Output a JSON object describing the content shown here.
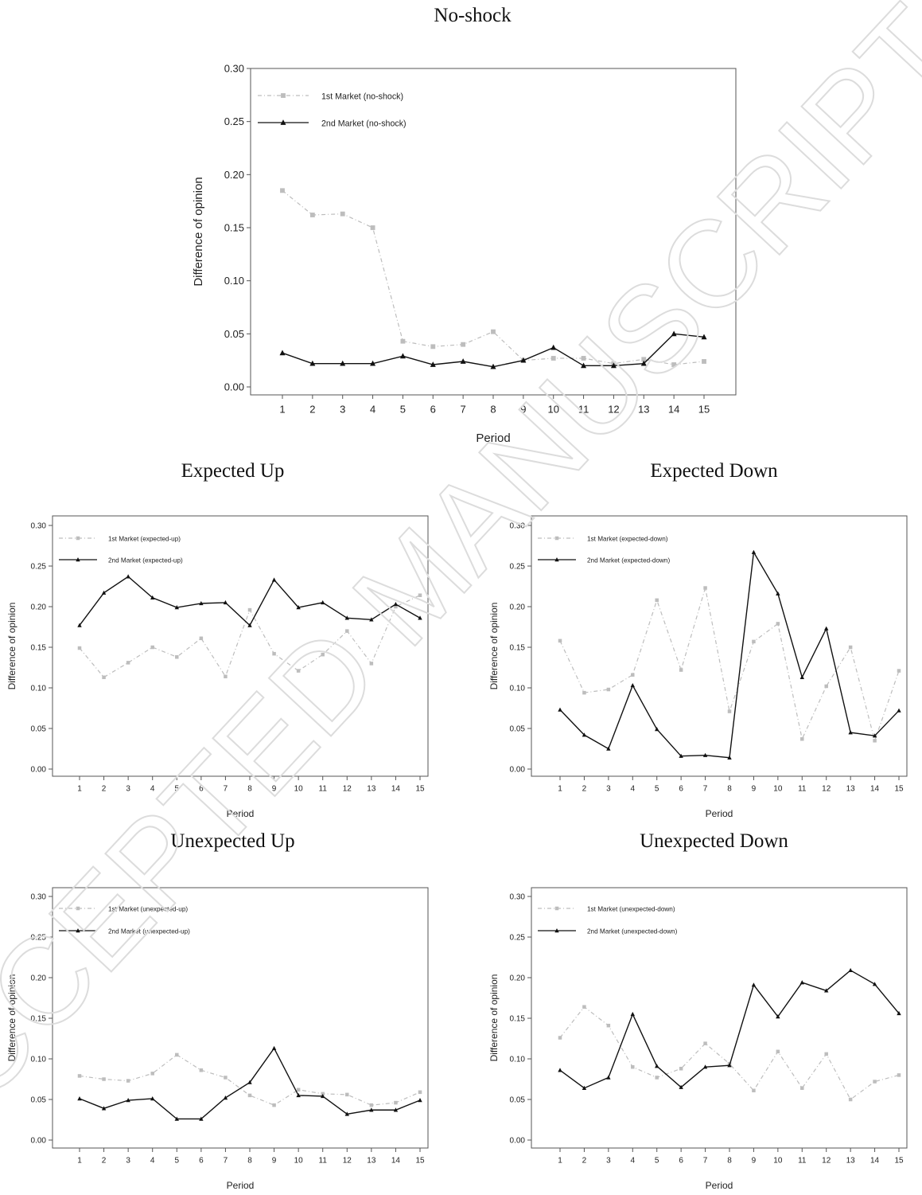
{
  "page": {
    "watermark": "ACCEPTED MANUSCRIPT"
  },
  "colors": {
    "first_market": "#bdbdbd",
    "second_market": "#111111",
    "axis": "#555555"
  },
  "chart_data": [
    {
      "type": "line",
      "title": "No-shock",
      "xlabel": "Period",
      "ylabel": "Difference of opinion",
      "x": [
        1,
        2,
        3,
        4,
        5,
        6,
        7,
        8,
        9,
        10,
        11,
        12,
        13,
        14,
        15
      ],
      "ylim": [
        0,
        0.3
      ],
      "yticks": [
        "0.00",
        "0.05",
        "0.10",
        "0.15",
        "0.20",
        "0.25",
        "0.30"
      ],
      "grid": false,
      "legend_position": "top-left",
      "series": [
        {
          "name": "1st Market (no-shock)",
          "marker": "square",
          "style": "dash-dot",
          "values": [
            0.185,
            0.162,
            0.163,
            0.15,
            0.043,
            0.038,
            0.04,
            0.052,
            0.025,
            0.027,
            0.027,
            0.022,
            0.026,
            0.021,
            0.024
          ]
        },
        {
          "name": "2nd Market (no-shock)",
          "marker": "triangle",
          "style": "solid",
          "values": [
            0.032,
            0.022,
            0.022,
            0.022,
            0.029,
            0.021,
            0.024,
            0.019,
            0.025,
            0.037,
            0.02,
            0.02,
            0.022,
            0.05,
            0.047
          ]
        }
      ]
    },
    {
      "type": "line",
      "title": "Expected Up",
      "xlabel": "Period",
      "ylabel": "Difference of opinion",
      "x": [
        1,
        2,
        3,
        4,
        5,
        6,
        7,
        8,
        9,
        10,
        11,
        12,
        13,
        14,
        15
      ],
      "ylim": [
        0,
        0.3
      ],
      "yticks": [
        "0.00",
        "0.05",
        "0.10",
        "0.15",
        "0.20",
        "0.25",
        "0.30"
      ],
      "grid": false,
      "legend_position": "top-left",
      "series": [
        {
          "name": "1st Market (expected-up)",
          "marker": "square",
          "style": "dash-dot",
          "values": [
            0.149,
            0.113,
            0.131,
            0.15,
            0.138,
            0.161,
            0.114,
            0.196,
            0.142,
            0.121,
            0.141,
            0.17,
            0.13,
            0.2,
            0.214
          ]
        },
        {
          "name": "2nd Market (expected-up)",
          "marker": "triangle",
          "style": "solid",
          "values": [
            0.177,
            0.217,
            0.237,
            0.211,
            0.199,
            0.204,
            0.205,
            0.177,
            0.233,
            0.199,
            0.205,
            0.186,
            0.184,
            0.203,
            0.186
          ]
        }
      ]
    },
    {
      "type": "line",
      "title": "Expected Down",
      "xlabel": "Period",
      "ylabel": "Difference of opinion",
      "x": [
        1,
        2,
        3,
        4,
        5,
        6,
        7,
        8,
        9,
        10,
        11,
        12,
        13,
        14,
        15
      ],
      "ylim": [
        0,
        0.3
      ],
      "yticks": [
        "0.00",
        "0.05",
        "0.10",
        "0.15",
        "0.20",
        "0.25",
        "0.30"
      ],
      "grid": false,
      "legend_position": "top-left",
      "series": [
        {
          "name": "1st Market (expected-down)",
          "marker": "square",
          "style": "dash-dot",
          "values": [
            0.158,
            0.094,
            0.098,
            0.116,
            0.208,
            0.122,
            0.223,
            0.071,
            0.157,
            0.179,
            0.037,
            0.102,
            0.15,
            0.035,
            0.121
          ]
        },
        {
          "name": "2nd Market (expected-down)",
          "marker": "triangle",
          "style": "solid",
          "values": [
            0.073,
            0.042,
            0.025,
            0.103,
            0.049,
            0.016,
            0.017,
            0.014,
            0.267,
            0.216,
            0.113,
            0.173,
            0.045,
            0.041,
            0.072
          ]
        }
      ]
    },
    {
      "type": "line",
      "title": "Unexpected Up",
      "xlabel": "Period",
      "ylabel": "Difference of opinion",
      "x": [
        1,
        2,
        3,
        4,
        5,
        6,
        7,
        8,
        9,
        10,
        11,
        12,
        13,
        14,
        15
      ],
      "ylim": [
        0,
        0.3
      ],
      "yticks": [
        "0.00",
        "0.05",
        "0.10",
        "0.15",
        "0.20",
        "0.25",
        "0.30"
      ],
      "grid": false,
      "legend_position": "top-left",
      "series": [
        {
          "name": "1st Market (unexpected-up)",
          "marker": "square",
          "style": "dash-dot",
          "values": [
            0.079,
            0.075,
            0.073,
            0.082,
            0.105,
            0.086,
            0.077,
            0.055,
            0.043,
            0.062,
            0.057,
            0.056,
            0.043,
            0.046,
            0.059
          ]
        },
        {
          "name": "2nd Market (unexpected-up)",
          "marker": "triangle",
          "style": "solid",
          "values": [
            0.051,
            0.039,
            0.049,
            0.051,
            0.026,
            0.026,
            0.052,
            0.071,
            0.113,
            0.055,
            0.054,
            0.032,
            0.037,
            0.037,
            0.049
          ]
        }
      ]
    },
    {
      "type": "line",
      "title": "Unexpected Down",
      "xlabel": "Period",
      "ylabel": "Difference of opinion",
      "x": [
        1,
        2,
        3,
        4,
        5,
        6,
        7,
        8,
        9,
        10,
        11,
        12,
        13,
        14,
        15
      ],
      "ylim": [
        0,
        0.3
      ],
      "yticks": [
        "0.00",
        "0.05",
        "0.10",
        "0.15",
        "0.20",
        "0.25",
        "0.30"
      ],
      "grid": false,
      "legend_position": "top-left",
      "series": [
        {
          "name": "1st Market (unexpected-down)",
          "marker": "square",
          "style": "dash-dot",
          "values": [
            0.126,
            0.164,
            0.141,
            0.09,
            0.077,
            0.088,
            0.119,
            0.094,
            0.061,
            0.109,
            0.064,
            0.106,
            0.05,
            0.072,
            0.08
          ]
        },
        {
          "name": "2nd Market (unexpected-down)",
          "marker": "triangle",
          "style": "solid",
          "values": [
            0.086,
            0.064,
            0.077,
            0.155,
            0.091,
            0.065,
            0.09,
            0.092,
            0.191,
            0.152,
            0.194,
            0.184,
            0.209,
            0.192,
            0.156
          ]
        }
      ]
    }
  ]
}
